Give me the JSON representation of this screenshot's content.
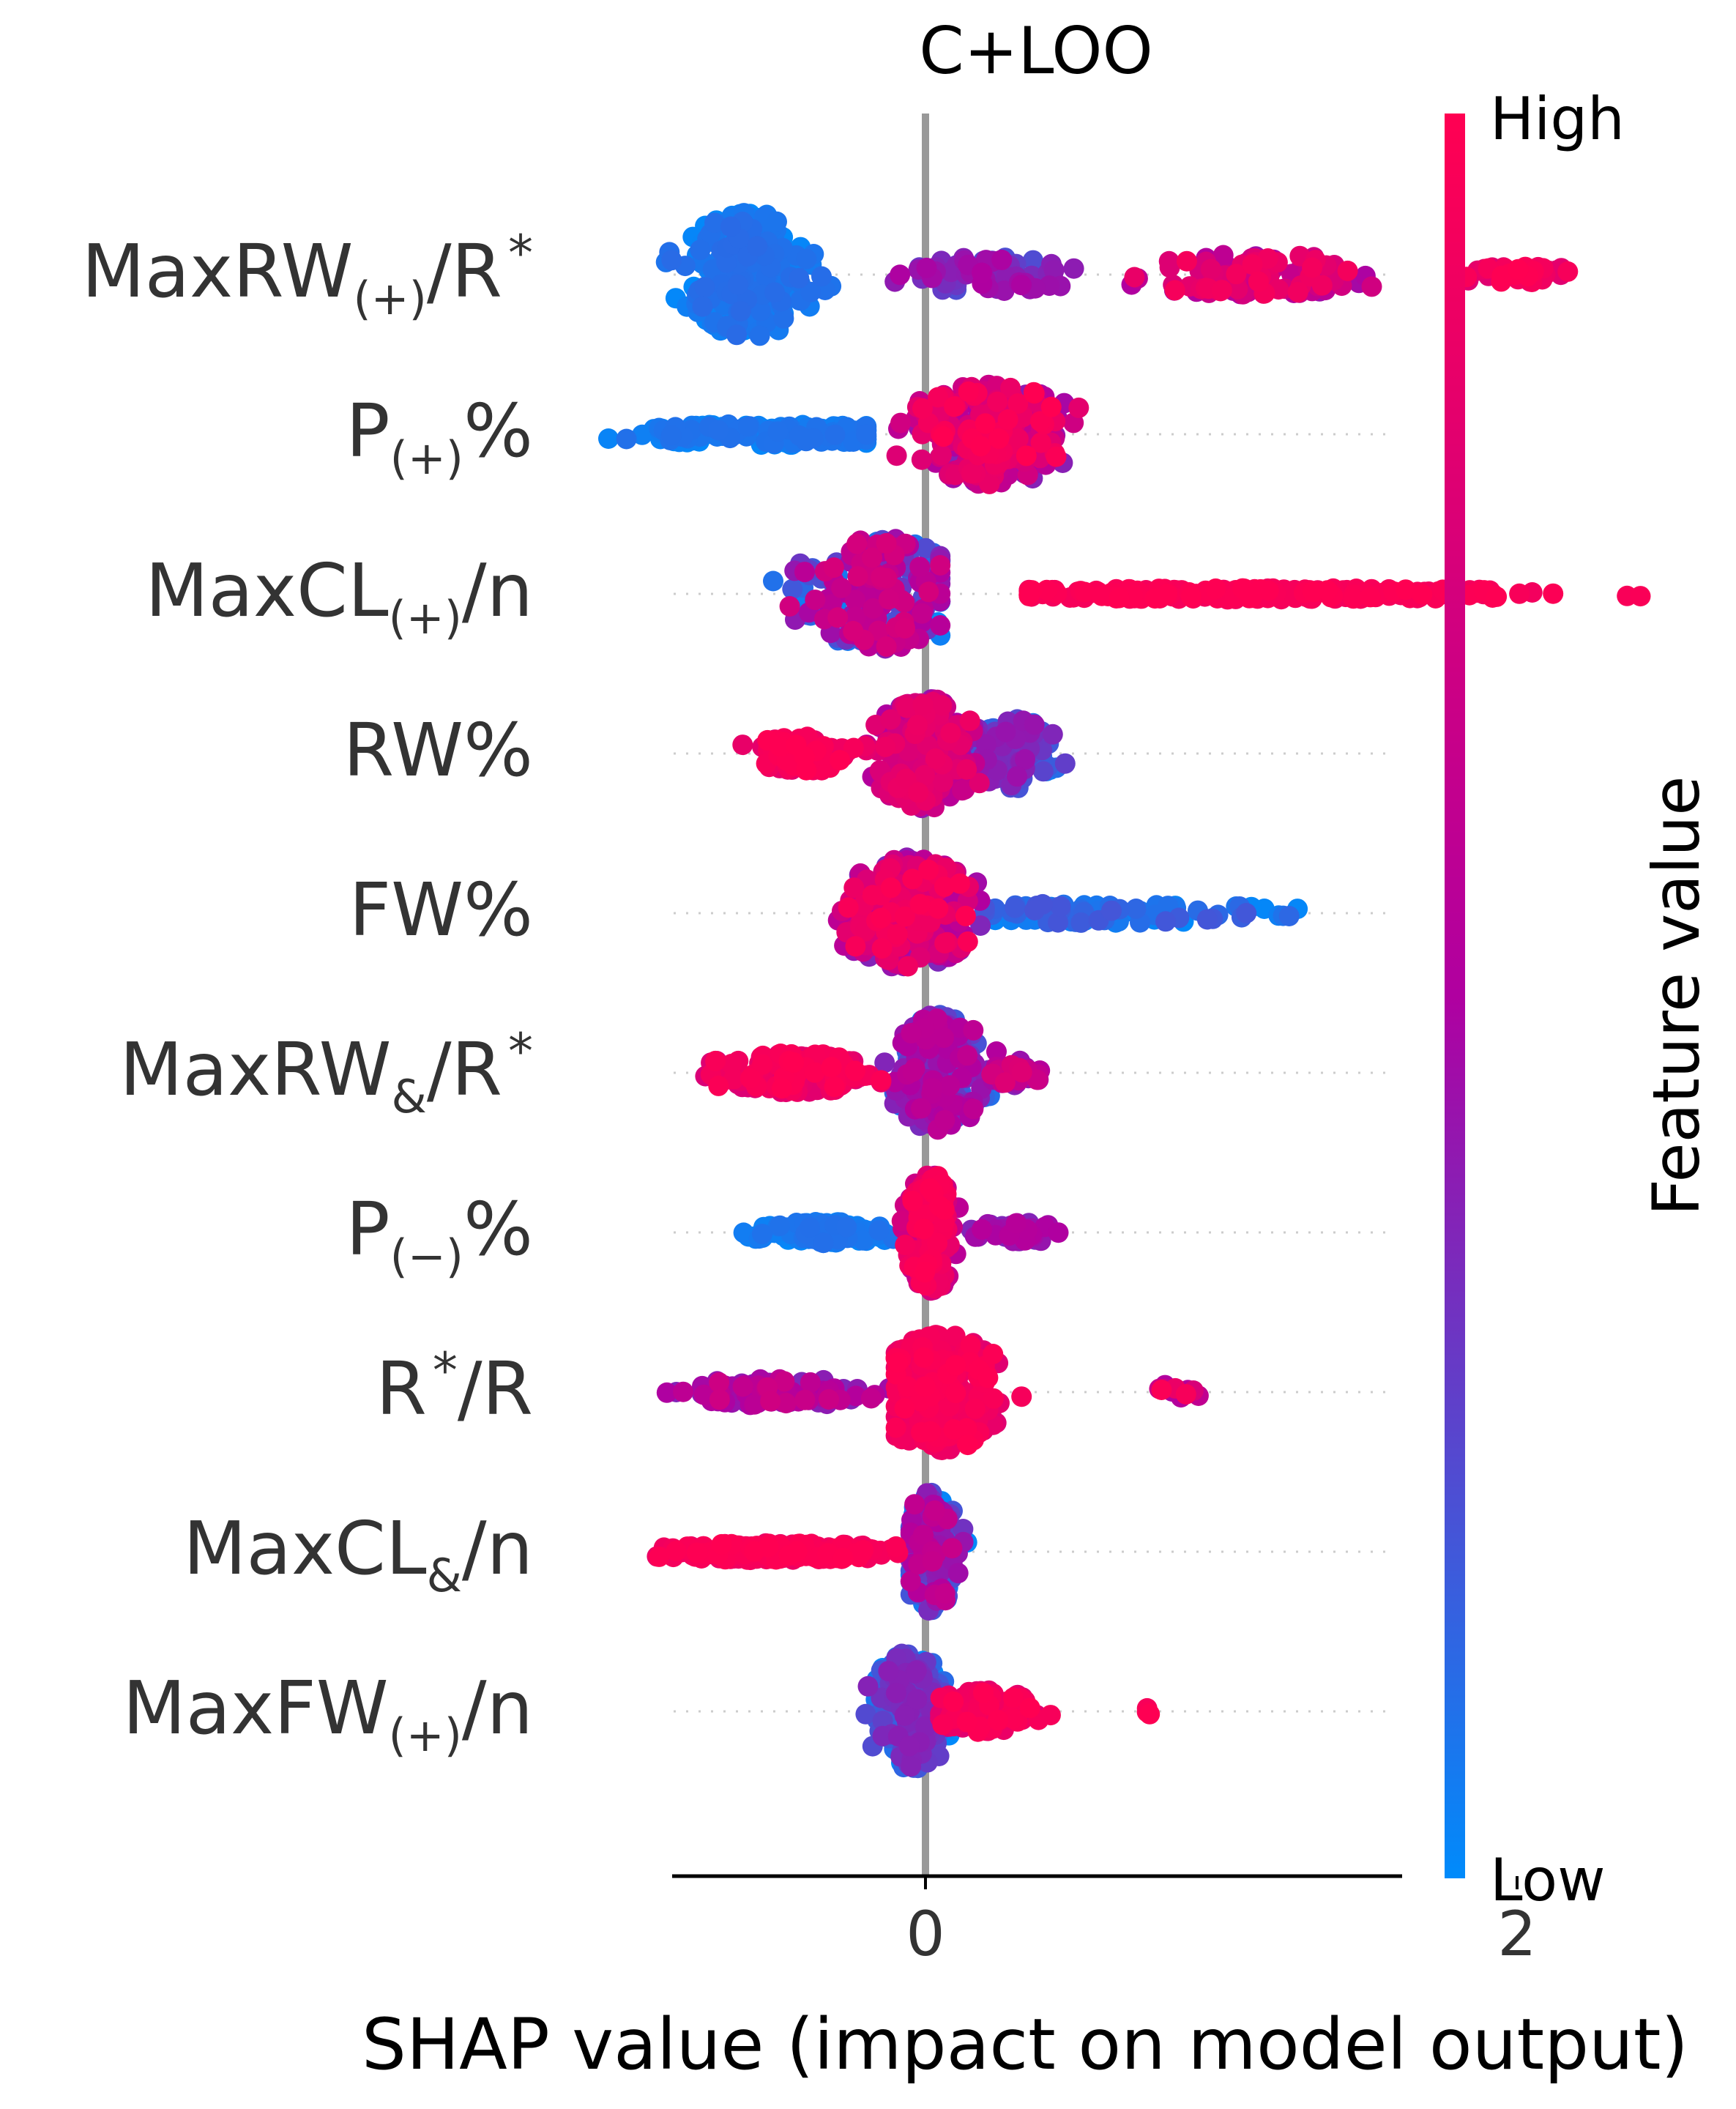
{
  "chart_data": {
    "type": "scatter",
    "subtype": "shap-beeswarm",
    "title": "C+LOO",
    "xlabel": "SHAP value (impact on model output)",
    "xlim": [
      -1.72,
      3.2
    ],
    "xticks": [
      {
        "value": 0,
        "label": "0"
      },
      {
        "value": 2,
        "label": "2"
      }
    ],
    "grid": false,
    "zero_line": true,
    "colorbar": {
      "title": "Feature value",
      "high_label": "High",
      "low_label": "Low",
      "low_color": "#008bfb",
      "mid_color": "#b000a0",
      "high_color": "#ff0052"
    },
    "features": [
      {
        "base": "MaxRW",
        "sub": "(+)",
        "tail": "/R",
        "sup": "*",
        "clusters": [
          {
            "min": -0.9,
            "max": -0.3,
            "center": -0.6,
            "spread": 0.9,
            "value_lo": 0.0,
            "value_hi": 0.12,
            "n": 280
          },
          {
            "min": -0.2,
            "max": 0.6,
            "center": 0.2,
            "spread": 0.25,
            "value_lo": 0.2,
            "value_hi": 0.5,
            "n": 80
          },
          {
            "min": 0.6,
            "max": 1.7,
            "center": 1.1,
            "spread": 0.3,
            "value_lo": 0.45,
            "value_hi": 0.95,
            "n": 110
          },
          {
            "min": 1.7,
            "max": 2.3,
            "center": 2.0,
            "spread": 0.12,
            "value_lo": 0.8,
            "value_hi": 1.0,
            "n": 40
          }
        ]
      },
      {
        "base": "P",
        "sub": "(+)",
        "tail": "%",
        "sup": "",
        "clusters": [
          {
            "min": -1.5,
            "max": -0.2,
            "center": -0.5,
            "spread": 0.15,
            "value_lo": 0.0,
            "value_hi": 0.1,
            "n": 150
          },
          {
            "min": -0.1,
            "max": 0.6,
            "center": 0.22,
            "spread": 0.75,
            "value_lo": 0.35,
            "value_hi": 1.0,
            "n": 240
          }
        ]
      },
      {
        "base": "MaxCL",
        "sub": "(+)",
        "tail": "/n",
        "sup": "",
        "clusters": [
          {
            "min": -0.7,
            "max": 0.05,
            "center": -0.15,
            "spread": 0.8,
            "value_lo": 0.0,
            "value_hi": 0.75,
            "n": 220
          },
          {
            "min": 0.35,
            "max": 3.0,
            "center": 1.1,
            "spread": 0.08,
            "value_lo": 0.92,
            "value_hi": 1.0,
            "n": 210
          }
        ]
      },
      {
        "base": "RW",
        "sub": "",
        "tail": "%",
        "sup": "",
        "clusters": [
          {
            "min": -0.7,
            "max": -0.2,
            "center": -0.4,
            "spread": 0.25,
            "value_lo": 0.8,
            "value_hi": 1.0,
            "n": 90
          },
          {
            "min": -0.2,
            "max": 0.25,
            "center": 0.0,
            "spread": 0.8,
            "value_lo": 0.3,
            "value_hi": 0.9,
            "n": 220
          },
          {
            "min": 0.1,
            "max": 0.5,
            "center": 0.3,
            "spread": 0.5,
            "value_lo": 0.0,
            "value_hi": 0.45,
            "n": 120
          }
        ]
      },
      {
        "base": "FW",
        "sub": "",
        "tail": "%",
        "sup": "",
        "clusters": [
          {
            "min": -0.4,
            "max": 0.2,
            "center": -0.05,
            "spread": 0.8,
            "value_lo": 0.35,
            "value_hi": 1.0,
            "n": 240
          },
          {
            "min": 0.2,
            "max": 1.7,
            "center": 0.6,
            "spread": 0.14,
            "value_lo": 0.0,
            "value_hi": 0.2,
            "n": 90
          }
        ]
      },
      {
        "base": "MaxRW",
        "sub": "&",
        "tail": "/R",
        "sup": "*",
        "clusters": [
          {
            "min": -0.95,
            "max": -0.15,
            "center": -0.45,
            "spread": 0.28,
            "value_lo": 0.75,
            "value_hi": 1.0,
            "n": 150
          },
          {
            "min": -0.15,
            "max": 0.25,
            "center": 0.05,
            "spread": 0.85,
            "value_lo": 0.05,
            "value_hi": 0.6,
            "n": 200
          },
          {
            "min": 0.2,
            "max": 0.45,
            "center": 0.3,
            "spread": 0.18,
            "value_lo": 0.35,
            "value_hi": 0.8,
            "n": 40
          }
        ]
      },
      {
        "base": "P",
        "sub": "(−)",
        "tail": "%",
        "sup": "",
        "clusters": [
          {
            "min": -0.8,
            "max": -0.1,
            "center": -0.35,
            "spread": 0.15,
            "value_lo": 0.0,
            "value_hi": 0.1,
            "n": 120
          },
          {
            "min": -0.08,
            "max": 0.15,
            "center": 0.02,
            "spread": 0.85,
            "value_lo": 0.55,
            "value_hi": 1.0,
            "n": 200
          },
          {
            "min": 0.15,
            "max": 0.55,
            "center": 0.3,
            "spread": 0.15,
            "value_lo": 0.35,
            "value_hi": 0.55,
            "n": 40
          }
        ]
      },
      {
        "base": "R",
        "sub": "",
        "tail": "/R",
        "sup": "*",
        "clusters": [
          {
            "min": -1.0,
            "max": -0.1,
            "center": -0.5,
            "spread": 0.2,
            "value_lo": 0.35,
            "value_hi": 0.7,
            "n": 90
          },
          {
            "min": -0.1,
            "max": 0.45,
            "center": 0.05,
            "spread": 0.85,
            "value_lo": 0.8,
            "value_hi": 1.0,
            "n": 240
          },
          {
            "min": 0.7,
            "max": 0.95,
            "center": 0.82,
            "spread": 0.1,
            "value_lo": 0.45,
            "value_hi": 1.0,
            "n": 12
          }
        ]
      },
      {
        "base": "MaxCL",
        "sub": "&",
        "tail": "/n",
        "sup": "",
        "clusters": [
          {
            "min": -1.2,
            "max": -0.05,
            "center": -0.5,
            "spread": 0.12,
            "value_lo": 0.88,
            "value_hi": 1.0,
            "n": 200
          },
          {
            "min": -0.05,
            "max": 0.2,
            "center": 0.02,
            "spread": 0.85,
            "value_lo": 0.0,
            "value_hi": 0.65,
            "n": 150
          }
        ]
      },
      {
        "base": "MaxFW",
        "sub": "(+)",
        "tail": "/n",
        "sup": "",
        "clusters": [
          {
            "min": -0.25,
            "max": 0.1,
            "center": -0.05,
            "spread": 0.85,
            "value_lo": 0.0,
            "value_hi": 0.4,
            "n": 220
          },
          {
            "min": 0.05,
            "max": 0.55,
            "center": 0.2,
            "spread": 0.3,
            "value_lo": 0.8,
            "value_hi": 1.0,
            "n": 110
          },
          {
            "min": 0.7,
            "max": 0.78,
            "center": 0.74,
            "spread": 0.05,
            "value_lo": 0.9,
            "value_hi": 1.0,
            "n": 3
          }
        ]
      }
    ]
  }
}
